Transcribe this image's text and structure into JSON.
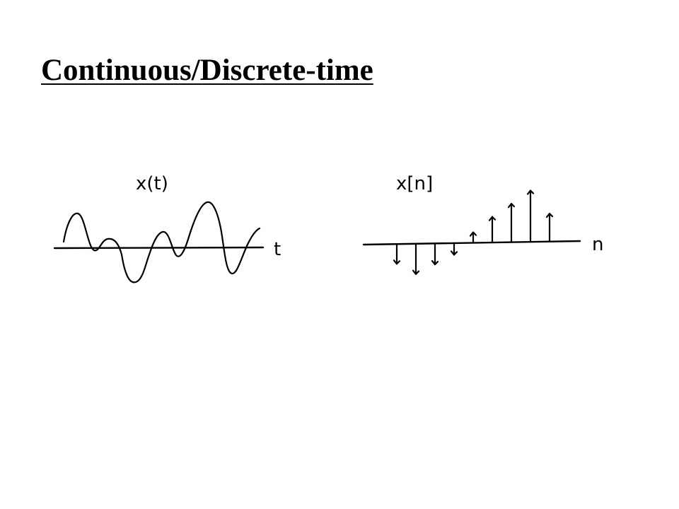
{
  "slide": {
    "title": "Continuous/Discrete-time"
  },
  "continuous_plot": {
    "signal_label": "x(t)",
    "axis_label": "t"
  },
  "discrete_plot": {
    "signal_label": "x[n]",
    "axis_label": "n",
    "samples": [
      -0.85,
      -1.3,
      -0.9,
      -0.5,
      0.45,
      1.1,
      1.65,
      2.2,
      1.2
    ]
  },
  "colors": {
    "ink": "#000000",
    "background": "#ffffff"
  }
}
